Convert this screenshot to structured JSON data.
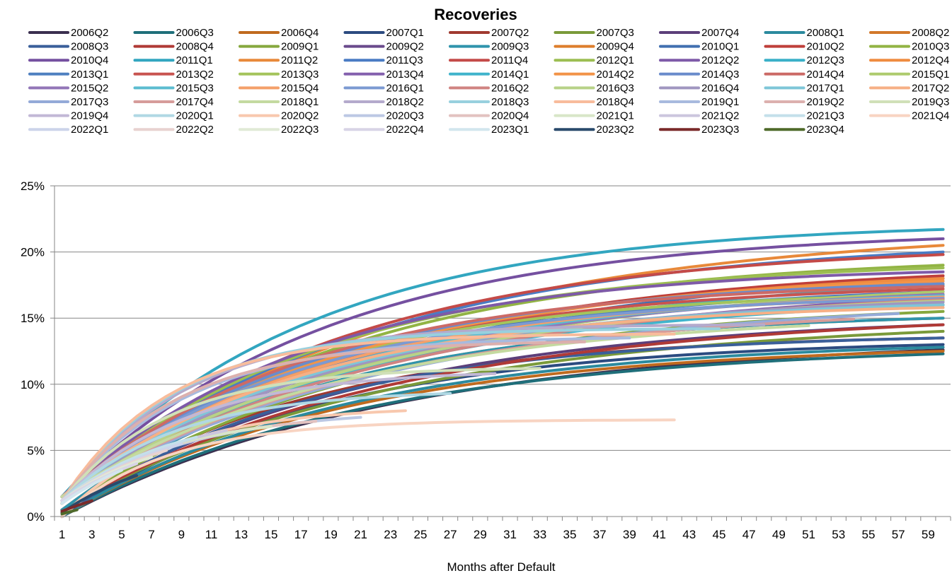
{
  "chart_data": {
    "type": "line",
    "title": "Recoveries",
    "xlabel": "Months after Default",
    "ylabel": "",
    "x_range": [
      1,
      60
    ],
    "x_tick_labels": [
      "1",
      "3",
      "5",
      "7",
      "9",
      "11",
      "13",
      "15",
      "17",
      "19",
      "21",
      "23",
      "25",
      "27",
      "29",
      "31",
      "33",
      "35",
      "37",
      "39",
      "41",
      "43",
      "45",
      "47",
      "49",
      "51",
      "53",
      "55",
      "57",
      "59"
    ],
    "ylim": [
      0,
      0.25
    ],
    "y_ticks": [
      0,
      0.05,
      0.1,
      0.15,
      0.2,
      0.25
    ],
    "y_tick_labels": [
      "0%",
      "5%",
      "10%",
      "15%",
      "20%",
      "25%"
    ],
    "grid": true,
    "legend_position": "top",
    "series": [
      {
        "name": "2006Q2",
        "color": "#3b2f4f",
        "length": 60,
        "final": 0.126,
        "early": 0.0
      },
      {
        "name": "2006Q3",
        "color": "#1f6f7a",
        "length": 60,
        "final": 0.123,
        "early": 0.0
      },
      {
        "name": "2006Q4",
        "color": "#c06a1e",
        "length": 60,
        "final": 0.125,
        "early": 0.0
      },
      {
        "name": "2007Q1",
        "color": "#2c4b80",
        "length": 60,
        "final": 0.13,
        "early": 0.0
      },
      {
        "name": "2007Q2",
        "color": "#a03a30",
        "length": 60,
        "final": 0.135,
        "early": 0.005
      },
      {
        "name": "2007Q3",
        "color": "#7a9a3a",
        "length": 60,
        "final": 0.14,
        "early": 0.005
      },
      {
        "name": "2007Q4",
        "color": "#5c3f7a",
        "length": 60,
        "final": 0.145,
        "early": 0.005
      },
      {
        "name": "2008Q1",
        "color": "#2b8a9e",
        "length": 60,
        "final": 0.128,
        "early": 0.0
      },
      {
        "name": "2008Q2",
        "color": "#d2782a",
        "length": 60,
        "final": 0.15,
        "early": 0.005
      },
      {
        "name": "2008Q3",
        "color": "#3a5f9a",
        "length": 60,
        "final": 0.135,
        "early": 0.0
      },
      {
        "name": "2008Q4",
        "color": "#b03a36",
        "length": 60,
        "final": 0.145,
        "early": 0.005
      },
      {
        "name": "2009Q1",
        "color": "#86a83e",
        "length": 60,
        "final": 0.155,
        "early": 0.005
      },
      {
        "name": "2009Q2",
        "color": "#6a4a8c",
        "length": 60,
        "final": 0.16,
        "early": 0.01
      },
      {
        "name": "2009Q3",
        "color": "#2f94ac",
        "length": 60,
        "final": 0.15,
        "early": 0.005
      },
      {
        "name": "2009Q4",
        "color": "#dd7e2c",
        "length": 60,
        "final": 0.165,
        "early": 0.01
      },
      {
        "name": "2010Q1",
        "color": "#4170b0",
        "length": 60,
        "final": 0.18,
        "early": 0.01
      },
      {
        "name": "2010Q2",
        "color": "#bf3f3a",
        "length": 60,
        "final": 0.182,
        "early": 0.01
      },
      {
        "name": "2010Q3",
        "color": "#92b444",
        "length": 60,
        "final": 0.19,
        "early": 0.01
      },
      {
        "name": "2010Q4",
        "color": "#7550a0",
        "length": 60,
        "final": 0.21,
        "early": 0.015
      },
      {
        "name": "2011Q1",
        "color": "#32a6c0",
        "length": 60,
        "final": 0.217,
        "early": 0.015
      },
      {
        "name": "2011Q2",
        "color": "#e8893a",
        "length": 60,
        "final": 0.205,
        "early": 0.015
      },
      {
        "name": "2011Q3",
        "color": "#4a7cc4",
        "length": 60,
        "final": 0.2,
        "early": 0.015
      },
      {
        "name": "2011Q4",
        "color": "#c44a48",
        "length": 60,
        "final": 0.198,
        "early": 0.015
      },
      {
        "name": "2012Q1",
        "color": "#9cbe52",
        "length": 60,
        "final": 0.188,
        "early": 0.015
      },
      {
        "name": "2012Q2",
        "color": "#7e5aa8",
        "length": 60,
        "final": 0.185,
        "early": 0.015
      },
      {
        "name": "2012Q3",
        "color": "#3ab0c8",
        "length": 60,
        "final": 0.175,
        "early": 0.015
      },
      {
        "name": "2012Q4",
        "color": "#ef8c40",
        "length": 60,
        "final": 0.18,
        "early": 0.015
      },
      {
        "name": "2013Q1",
        "color": "#4f80c0",
        "length": 60,
        "final": 0.17,
        "early": 0.015
      },
      {
        "name": "2013Q2",
        "color": "#c85450",
        "length": 60,
        "final": 0.172,
        "early": 0.015
      },
      {
        "name": "2013Q3",
        "color": "#a4c45c",
        "length": 60,
        "final": 0.168,
        "early": 0.015
      },
      {
        "name": "2013Q4",
        "color": "#8460ae",
        "length": 60,
        "final": 0.165,
        "early": 0.015
      },
      {
        "name": "2014Q1",
        "color": "#40b4cc",
        "length": 60,
        "final": 0.16,
        "early": 0.015
      },
      {
        "name": "2014Q2",
        "color": "#f29448",
        "length": 60,
        "final": 0.178,
        "early": 0.015
      },
      {
        "name": "2014Q3",
        "color": "#6a8ccc",
        "length": 60,
        "final": 0.176,
        "early": 0.015
      },
      {
        "name": "2014Q4",
        "color": "#cc6a66",
        "length": 60,
        "final": 0.174,
        "early": 0.015
      },
      {
        "name": "2015Q1",
        "color": "#aecb6e",
        "length": 60,
        "final": 0.17,
        "early": 0.015
      },
      {
        "name": "2015Q2",
        "color": "#9276b8",
        "length": 60,
        "final": 0.168,
        "early": 0.015
      },
      {
        "name": "2015Q3",
        "color": "#5cbcd0",
        "length": 60,
        "final": 0.167,
        "early": 0.015
      },
      {
        "name": "2015Q4",
        "color": "#f4a06a",
        "length": 60,
        "final": 0.166,
        "early": 0.015
      },
      {
        "name": "2016Q1",
        "color": "#7c9ad2",
        "length": 60,
        "final": 0.165,
        "early": 0.015
      },
      {
        "name": "2016Q2",
        "color": "#d08482",
        "length": 60,
        "final": 0.164,
        "early": 0.015
      },
      {
        "name": "2016Q3",
        "color": "#b8d288",
        "length": 60,
        "final": 0.163,
        "early": 0.015
      },
      {
        "name": "2016Q4",
        "color": "#a096c0",
        "length": 60,
        "final": 0.162,
        "early": 0.015
      },
      {
        "name": "2017Q1",
        "color": "#7ec6d8",
        "length": 60,
        "final": 0.16,
        "early": 0.015
      },
      {
        "name": "2017Q2",
        "color": "#f6b086",
        "length": 60,
        "final": 0.158,
        "early": 0.015
      },
      {
        "name": "2017Q3",
        "color": "#94aad8",
        "length": 57,
        "final": 0.155,
        "early": 0.015
      },
      {
        "name": "2017Q4",
        "color": "#d69c9a",
        "length": 54,
        "final": 0.152,
        "early": 0.015
      },
      {
        "name": "2018Q1",
        "color": "#c4daa0",
        "length": 51,
        "final": 0.148,
        "early": 0.015
      },
      {
        "name": "2018Q2",
        "color": "#b4aacc",
        "length": 48,
        "final": 0.145,
        "early": 0.012
      },
      {
        "name": "2018Q3",
        "color": "#98d0de",
        "length": 45,
        "final": 0.142,
        "early": 0.012
      },
      {
        "name": "2018Q4",
        "color": "#f8bc9c",
        "length": 42,
        "final": 0.138,
        "early": 0.012
      },
      {
        "name": "2019Q1",
        "color": "#a8bade",
        "length": 39,
        "final": 0.135,
        "early": 0.012
      },
      {
        "name": "2019Q2",
        "color": "#dcb0ae",
        "length": 36,
        "final": 0.132,
        "early": 0.012
      },
      {
        "name": "2019Q3",
        "color": "#d0e0b8",
        "length": 33,
        "final": 0.112,
        "early": 0.012
      },
      {
        "name": "2019Q4",
        "color": "#c2b8d6",
        "length": 30,
        "final": 0.108,
        "early": 0.012
      },
      {
        "name": "2020Q1",
        "color": "#b0d8e4",
        "length": 27,
        "final": 0.093,
        "early": 0.012
      },
      {
        "name": "2020Q2",
        "color": "#f8c8ae",
        "length": 24,
        "final": 0.08,
        "early": 0.0
      },
      {
        "name": "2020Q3",
        "color": "#bcc8e4",
        "length": 21,
        "final": 0.075,
        "early": 0.012
      },
      {
        "name": "2020Q4",
        "color": "#e2c2c0",
        "length": 18,
        "final": 0.072,
        "early": 0.012
      },
      {
        "name": "2021Q1",
        "color": "#d8e6c8",
        "length": 15,
        "final": 0.068,
        "early": 0.012
      },
      {
        "name": "2021Q2",
        "color": "#ccc6de",
        "length": 12,
        "final": 0.065,
        "early": 0.012
      },
      {
        "name": "2021Q3",
        "color": "#c4e0ea",
        "length": 10,
        "final": 0.06,
        "early": 0.012
      },
      {
        "name": "2021Q4",
        "color": "#f8d4c2",
        "length": 42,
        "final": 0.073,
        "early": 0.0
      },
      {
        "name": "2022Q1",
        "color": "#ccd4ea",
        "length": 9,
        "final": 0.055,
        "early": 0.012
      },
      {
        "name": "2022Q2",
        "color": "#e8d2d0",
        "length": 8,
        "final": 0.05,
        "early": 0.012
      },
      {
        "name": "2022Q3",
        "color": "#e0ead6",
        "length": 7,
        "final": 0.045,
        "early": 0.012
      },
      {
        "name": "2022Q4",
        "color": "#d8d4e6",
        "length": 6,
        "final": 0.04,
        "early": 0.012
      },
      {
        "name": "2023Q1",
        "color": "#d2e6ee",
        "length": 5,
        "final": 0.035,
        "early": 0.01
      },
      {
        "name": "2023Q2",
        "color": "#2a4a6c",
        "length": 6,
        "final": 0.031,
        "early": 0.003
      },
      {
        "name": "2023Q3",
        "color": "#7a2a2a",
        "length": 3,
        "final": 0.012,
        "early": 0.004
      },
      {
        "name": "2023Q4",
        "color": "#4f6a2a",
        "length": 2,
        "final": 0.005,
        "early": 0.002
      }
    ]
  }
}
